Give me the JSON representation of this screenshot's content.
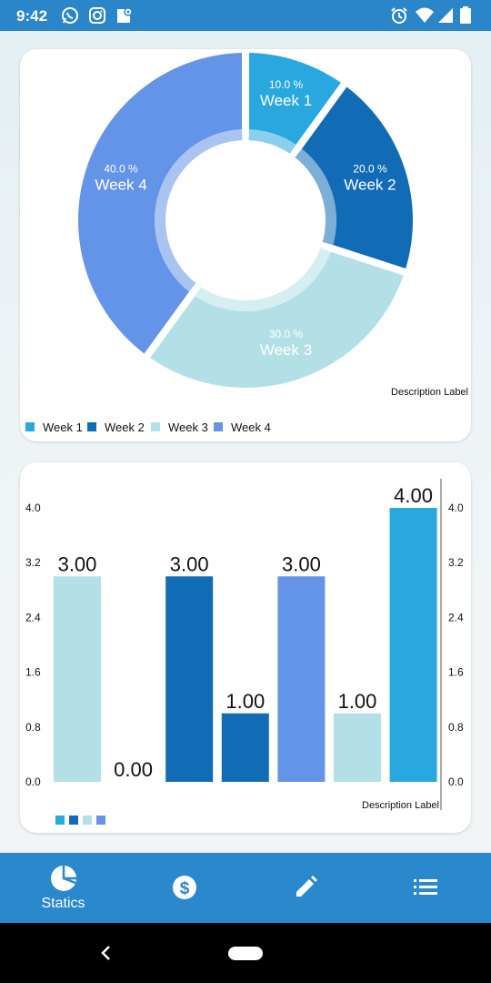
{
  "status_bar": {
    "time": "9:42"
  },
  "pie_chart": {
    "description": "Description Label",
    "legend": [
      "Week 1",
      "Week 2",
      "Week 3",
      "Week 4"
    ]
  },
  "bar_chart": {
    "description": "Description Label"
  },
  "chart_data": [
    {
      "type": "pie",
      "labels": [
        "Week 1",
        "Week 2",
        "Week 3",
        "Week 4"
      ],
      "values": [
        10.0,
        20.0,
        30.0,
        40.0
      ],
      "value_labels": [
        "10.0 %",
        "20.0 %",
        "30.0 %",
        "40.0 %"
      ],
      "colors": [
        "#29a8e0",
        "#116cb5",
        "#b3e0e6",
        "#6494e8"
      ],
      "donut": true,
      "legend_position": "bottom-left",
      "description": "Description Label"
    },
    {
      "type": "bar",
      "values": [
        3.0,
        0.0,
        3.0,
        1.0,
        3.0,
        1.0,
        4.0
      ],
      "value_labels": [
        "3.00",
        "0.00",
        "3.00",
        "1.00",
        "3.00",
        "1.00",
        "4.00"
      ],
      "colors": [
        "#b3e0e6",
        "#b3e0e6",
        "#116cb5",
        "#116cb5",
        "#6494e8",
        "#b3e0e6",
        "#29a8e0"
      ],
      "ylim": [
        0,
        4.0
      ],
      "yticks": [
        "0.0",
        "0.8",
        "1.6",
        "2.4",
        "3.2",
        "4.0"
      ],
      "legend_colors": [
        "#29a8e0",
        "#116cb5",
        "#b3e0e6",
        "#6494e8"
      ],
      "legend_position": "bottom-left",
      "description": "Description Label"
    }
  ],
  "bottom_nav": {
    "items": [
      {
        "icon": "pie-chart-icon",
        "label": "Statics"
      },
      {
        "icon": "dollar-icon",
        "label": ""
      },
      {
        "icon": "pencil-icon",
        "label": ""
      },
      {
        "icon": "list-icon",
        "label": ""
      }
    ]
  }
}
